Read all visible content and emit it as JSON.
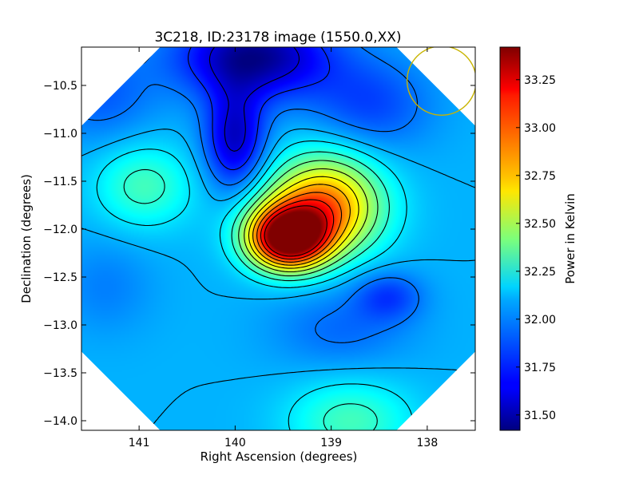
{
  "chart_data": {
    "type": "heatmap",
    "title": "3C218, ID:23178 image (1550.0,XX)",
    "xlabel": "Right Ascension (degrees)",
    "ylabel": "Declination (degrees)",
    "xlim": [
      141.6,
      137.5
    ],
    "ylim": [
      -14.1,
      -10.1
    ],
    "x_ticks": [
      141,
      140,
      139,
      138
    ],
    "x_tick_labels": [
      "141",
      "140",
      "139",
      "138"
    ],
    "y_ticks": [
      -10.5,
      -11.0,
      -11.5,
      -12.0,
      -12.5,
      -13.0,
      -13.5,
      -14.0
    ],
    "y_tick_labels": [
      "−10.5",
      "−11.0",
      "−11.5",
      "−12.0",
      "−12.5",
      "−13.0",
      "−13.5",
      "−14.0"
    ],
    "colorbar": {
      "label": "Power in Kelvin",
      "range": [
        31.42,
        33.42
      ],
      "ticks": [
        31.5,
        31.75,
        32.0,
        32.25,
        32.5,
        32.75,
        33.0,
        33.25
      ],
      "tick_labels": [
        "31.50",
        "31.75",
        "32.00",
        "32.25",
        "32.50",
        "32.75",
        "33.00",
        "33.25"
      ],
      "colormap": "jet"
    },
    "background_level": 32.02,
    "features": [
      {
        "ra": 139.45,
        "dec": -12.1,
        "value": 33.4,
        "kind": "peak",
        "sigma_ra": 0.28,
        "sigma_dec": 0.22
      },
      {
        "ra": 139.05,
        "dec": -11.65,
        "value": 32.6,
        "kind": "ridge",
        "sigma_ra": 0.4,
        "sigma_dec": 0.35
      },
      {
        "ra": 139.2,
        "dec": -11.9,
        "value": 32.5,
        "kind": "ridge",
        "sigma_ra": 0.45,
        "sigma_dec": 0.3
      },
      {
        "ra": 140.95,
        "dec": -11.55,
        "value": 32.3,
        "kind": "bump",
        "sigma_ra": 0.35,
        "sigma_dec": 0.3
      },
      {
        "ra": 138.8,
        "dec": -14.0,
        "value": 32.3,
        "kind": "bump",
        "sigma_ra": 0.45,
        "sigma_dec": 0.3
      },
      {
        "ra": 139.8,
        "dec": -10.2,
        "value": 31.45,
        "kind": "trough",
        "sigma_ra": 0.55,
        "sigma_dec": 0.3
      },
      {
        "ra": 140.0,
        "dec": -11.05,
        "value": 31.55,
        "kind": "trough",
        "sigma_ra": 0.22,
        "sigma_dec": 0.38
      },
      {
        "ra": 138.6,
        "dec": -10.7,
        "value": 31.8,
        "kind": "trough",
        "sigma_ra": 0.45,
        "sigma_dec": 0.35
      },
      {
        "ra": 141.4,
        "dec": -10.6,
        "value": 31.85,
        "kind": "trough",
        "sigma_ra": 0.4,
        "sigma_dec": 0.35
      },
      {
        "ra": 138.4,
        "dec": -12.7,
        "value": 31.8,
        "kind": "trough",
        "sigma_ra": 0.25,
        "sigma_dec": 0.18
      },
      {
        "ra": 138.9,
        "dec": -13.05,
        "value": 31.88,
        "kind": "trough",
        "sigma_ra": 0.5,
        "sigma_dec": 0.3
      },
      {
        "ra": 141.35,
        "dec": -12.6,
        "value": 31.92,
        "kind": "trough",
        "sigma_ra": 0.35,
        "sigma_dec": 0.35
      }
    ],
    "contour_levels": [
      31.6,
      31.75,
      31.9,
      32.02,
      32.12,
      32.25,
      32.38,
      32.52,
      32.66,
      32.8,
      32.95,
      33.1,
      33.25
    ],
    "beam_circle": {
      "ra": 137.85,
      "dec": -10.45,
      "radius_deg": 0.3,
      "color": "#c8b400"
    },
    "grid": false
  }
}
